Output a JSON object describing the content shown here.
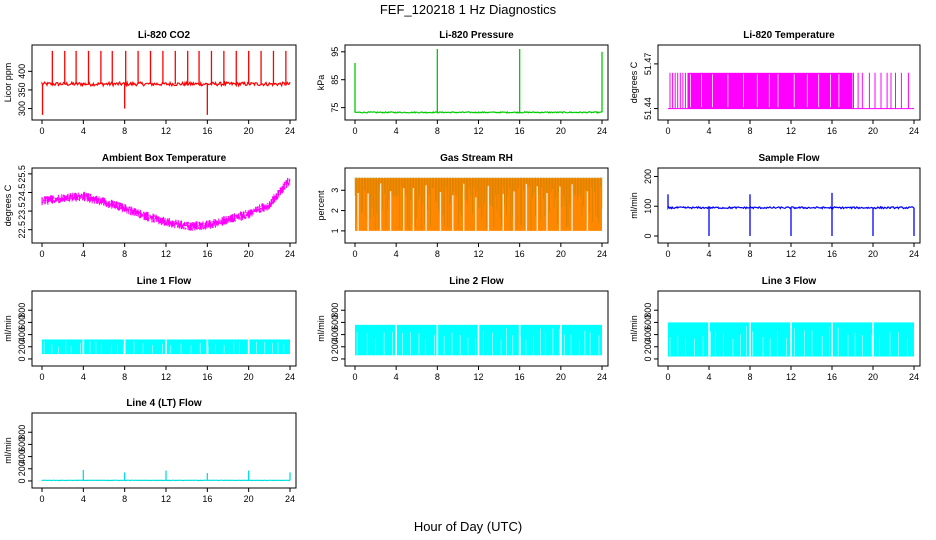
{
  "figure": {
    "title": "FEF_120218  1 Hz Diagnostics",
    "xlabel": "Hour of Day (UTC)"
  },
  "chart_data": [
    {
      "type": "line",
      "title": "Li-820 CO2",
      "ylabel": "Licor ppm",
      "color": "#ff0000",
      "xlim": [
        0,
        24
      ],
      "xticks": [
        0,
        4,
        8,
        12,
        16,
        20,
        24
      ],
      "ylim": [
        280,
        460
      ],
      "yticks": [
        300,
        350,
        400
      ],
      "baseline": 366,
      "noise": 5,
      "spikes": [
        {
          "x": 1.0,
          "y": 455
        },
        {
          "x": 2.2,
          "y": 455
        },
        {
          "x": 3.3,
          "y": 455
        },
        {
          "x": 4.5,
          "y": 455
        },
        {
          "x": 5.7,
          "y": 455
        },
        {
          "x": 6.8,
          "y": 455
        },
        {
          "x": 8.1,
          "y": 455
        },
        {
          "x": 9.3,
          "y": 455
        },
        {
          "x": 10.5,
          "y": 455
        },
        {
          "x": 11.7,
          "y": 455
        },
        {
          "x": 12.9,
          "y": 455
        },
        {
          "x": 14.1,
          "y": 455
        },
        {
          "x": 15.2,
          "y": 455
        },
        {
          "x": 16.4,
          "y": 455
        },
        {
          "x": 17.6,
          "y": 455
        },
        {
          "x": 18.8,
          "y": 455
        },
        {
          "x": 20.0,
          "y": 455
        },
        {
          "x": 21.2,
          "y": 455
        },
        {
          "x": 22.4,
          "y": 455
        },
        {
          "x": 23.6,
          "y": 455
        }
      ],
      "dips": [
        {
          "x": 0.05,
          "y": 283
        },
        {
          "x": 8.0,
          "y": 300
        },
        {
          "x": 16.0,
          "y": 283
        }
      ]
    },
    {
      "type": "line",
      "title": "Li-820 Pressure",
      "ylabel": "kPa",
      "color": "#00cc00",
      "xlim": [
        0,
        24
      ],
      "xticks": [
        0,
        4,
        8,
        12,
        16,
        20,
        24
      ],
      "ylim": [
        72,
        96
      ],
      "yticks": [
        75,
        85,
        95
      ],
      "baseline": 73.3,
      "noise": 0.2,
      "spikes": [
        {
          "x": 0.0,
          "y": 91
        },
        {
          "x": 8.0,
          "y": 96
        },
        {
          "x": 16.0,
          "y": 96
        },
        {
          "x": 24.0,
          "y": 95
        }
      ],
      "dips": []
    },
    {
      "type": "line",
      "title": "Li-820 Temperature",
      "ylabel": "degrees C",
      "color": "#ff00ff",
      "xlim": [
        0,
        24
      ],
      "xticks": [
        0,
        4,
        8,
        12,
        16,
        20,
        24
      ],
      "ylim": [
        51.435,
        51.48
      ],
      "yticks": [
        51.44,
        51.47
      ],
      "baseline": 51.44,
      "noise": 0,
      "band": {
        "low": 51.44,
        "high": 51.464,
        "x_start": 1.9,
        "x_end": 18.0
      },
      "spikes": [
        {
          "x": 13.2,
          "y": 51.479
        }
      ],
      "dips": []
    },
    {
      "type": "line",
      "title": "Ambient Box Temperature",
      "ylabel": "degrees C",
      "color": "#ff00ff",
      "xlim": [
        0,
        24
      ],
      "xticks": [
        0,
        4,
        8,
        12,
        16,
        20,
        24
      ],
      "ylim": [
        22.0,
        25.6
      ],
      "yticks": [
        22.5,
        23.5,
        24.5,
        25.5
      ],
      "curve": [
        {
          "x": 0,
          "y": 24.1
        },
        {
          "x": 2,
          "y": 24.25
        },
        {
          "x": 4,
          "y": 24.35
        },
        {
          "x": 6,
          "y": 24.05
        },
        {
          "x": 8,
          "y": 23.7
        },
        {
          "x": 10,
          "y": 23.3
        },
        {
          "x": 12,
          "y": 22.95
        },
        {
          "x": 14,
          "y": 22.75
        },
        {
          "x": 16,
          "y": 22.8
        },
        {
          "x": 18,
          "y": 23.1
        },
        {
          "x": 20,
          "y": 23.4
        },
        {
          "x": 22,
          "y": 23.9
        },
        {
          "x": 23,
          "y": 24.6
        },
        {
          "x": 24,
          "y": 25.25
        }
      ],
      "noise": 0.2
    },
    {
      "type": "line",
      "title": "Gas Stream RH",
      "ylabel": "percent",
      "color": "#ff8800",
      "xlim": [
        0,
        24
      ],
      "xticks": [
        0,
        4,
        8,
        12,
        16,
        20,
        24
      ],
      "ylim": [
        0.6,
        3.9
      ],
      "yticks": [
        1.0,
        2.0,
        3.0
      ],
      "band": {
        "low": 1.0,
        "high": 3.6,
        "x_start": 0.0,
        "x_end": 24.0
      },
      "noise": 0.1
    },
    {
      "type": "line",
      "title": "Sample Flow",
      "ylabel": "ml/min",
      "color": "#0000ff",
      "xlim": [
        0,
        24
      ],
      "xticks": [
        0,
        4,
        8,
        12,
        16,
        20,
        24
      ],
      "ylim": [
        -10,
        215
      ],
      "yticks": [
        0,
        100,
        200
      ],
      "baseline": 95,
      "noise": 3,
      "spikes": [
        {
          "x": 0.0,
          "y": 140
        },
        {
          "x": 8.0,
          "y": 140
        },
        {
          "x": 16.0,
          "y": 145
        }
      ],
      "dips": [
        {
          "x": 4.0,
          "y": 0
        },
        {
          "x": 8.0,
          "y": 0
        },
        {
          "x": 12.0,
          "y": 0
        },
        {
          "x": 16.0,
          "y": 0
        },
        {
          "x": 20.0,
          "y": 0
        },
        {
          "x": 24.0,
          "y": 0
        }
      ]
    },
    {
      "type": "line",
      "title": "Line 1 Flow",
      "ylabel": "ml/min",
      "color": "#00ffff",
      "xlim": [
        0,
        24
      ],
      "xticks": [
        0,
        4,
        8,
        12,
        16,
        20,
        24
      ],
      "ylim": [
        -50,
        1050
      ],
      "yticks": [
        0,
        200,
        400,
        600,
        800
      ],
      "band": {
        "low": 80,
        "high": 320,
        "x_start": 0.0,
        "x_end": 24.0
      },
      "gaps": [
        4,
        8,
        12,
        16,
        20
      ]
    },
    {
      "type": "line",
      "title": "Line 2 Flow",
      "ylabel": "ml/min",
      "color": "#00ffff",
      "xlim": [
        0,
        24
      ],
      "xticks": [
        0,
        4,
        8,
        12,
        16,
        20,
        24
      ],
      "ylim": [
        -50,
        1050
      ],
      "yticks": [
        0,
        200,
        400,
        600,
        800
      ],
      "band": {
        "low": 60,
        "high": 560,
        "x_start": 0.0,
        "x_end": 24.0
      },
      "gaps": [
        4,
        8,
        12,
        16,
        20
      ]
    },
    {
      "type": "line",
      "title": "Line 3 Flow",
      "ylabel": "ml/min",
      "color": "#00ffff",
      "xlim": [
        0,
        24
      ],
      "xticks": [
        0,
        4,
        8,
        12,
        16,
        20,
        24
      ],
      "ylim": [
        -50,
        1050
      ],
      "yticks": [
        0,
        200,
        400,
        600,
        800
      ],
      "band": {
        "low": 40,
        "high": 600,
        "x_start": 0.0,
        "x_end": 24.0
      },
      "gaps": [
        4,
        8,
        12,
        16,
        20
      ]
    },
    {
      "type": "line",
      "title": "Line 4 (LT) Flow",
      "ylabel": "ml/min",
      "color": "#00e0e0",
      "xlim": [
        0,
        24
      ],
      "xticks": [
        0,
        4,
        8,
        12,
        16,
        20,
        24
      ],
      "ylim": [
        -50,
        1050
      ],
      "yticks": [
        0,
        200,
        400,
        600,
        800
      ],
      "baseline": 10,
      "noise": 3,
      "spikes": [
        {
          "x": 4.0,
          "y": 180
        },
        {
          "x": 8.0,
          "y": 140
        },
        {
          "x": 12.0,
          "y": 170
        },
        {
          "x": 16.0,
          "y": 130
        },
        {
          "x": 20.0,
          "y": 170
        },
        {
          "x": 24.0,
          "y": 140
        }
      ],
      "dips": []
    }
  ]
}
